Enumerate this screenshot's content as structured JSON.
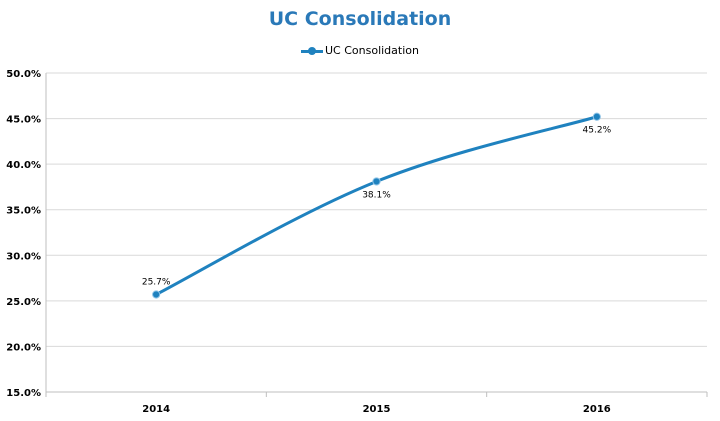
{
  "chart_data": {
    "type": "line",
    "title": "UC Consolidation",
    "categories": [
      "2014",
      "2015",
      "2016"
    ],
    "series": [
      {
        "name": "UC Consolidation",
        "values": [
          25.7,
          38.1,
          45.2
        ],
        "labels": [
          "25.7%",
          "38.1%",
          "45.2%"
        ],
        "color": "#1f82bf"
      }
    ],
    "xlabel": "",
    "ylabel": "",
    "ylim": [
      15,
      50
    ],
    "yticks": [
      "15.0%",
      "20.0%",
      "25.0%",
      "30.0%",
      "35.0%",
      "40.0%",
      "45.0%",
      "50.0%"
    ],
    "grid": true,
    "legend": "top"
  },
  "colors": {
    "title": "#2a79b8",
    "series": "#1f82bf",
    "grid": "#d9d9d9",
    "axis": "#bfbfbf"
  }
}
